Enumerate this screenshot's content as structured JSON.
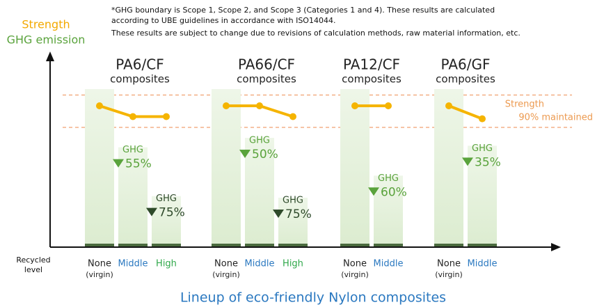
{
  "chart_data": {
    "type": "bar-line",
    "notes": [
      "*GHG boundary is Scope 1, Scope 2, and Scope 3 (Categories 1 and 4).   These results are calculated",
      "according to UBE guidelines in accordance with ISO14044.",
      "These results are subject to change due to revisions of calculation methods, raw material information, etc."
    ],
    "strength_label": "Strength",
    "ghg_label": "GHG emission",
    "x_label": [
      "Recycled",
      "level"
    ],
    "band_label": [
      "Strength",
      "90% maintained"
    ],
    "title": "Lineup of eco-friendly Nylon composites",
    "categories": [
      "PA6/CF",
      "PA66/CF",
      "PA12/CF",
      "PA6/GF"
    ],
    "category_subtitle": "composites",
    "annotation_prefix": "GHG",
    "ylim": [
      0,
      100
    ],
    "y2lim": [
      60,
      110
    ],
    "strength_band": [
      90,
      105
    ],
    "strength_color": "#f5b400",
    "series": [
      {
        "name": "None",
        "sublabel": "(virgin)",
        "color": "#222222",
        "values": [
          100,
          100,
          100,
          100
        ],
        "strength": [
          100,
          100,
          100,
          100
        ],
        "axis_label_color": "#222222"
      },
      {
        "name": "Middle",
        "color": "#2a78c0",
        "values": [
          63,
          69,
          45,
          64
        ],
        "strength": [
          95,
          100,
          100,
          94
        ],
        "ghg_labels": [
          "55%",
          "50%",
          "60%",
          "35%"
        ],
        "label_color": "#5aa33c"
      },
      {
        "name": "High",
        "color": "#2fa84a",
        "values": [
          32,
          31,
          null,
          null
        ],
        "strength": [
          95,
          95,
          null,
          null
        ],
        "ghg_labels": [
          "75%",
          "75%",
          null,
          null
        ],
        "label_color": "#2e4a2a"
      }
    ]
  }
}
